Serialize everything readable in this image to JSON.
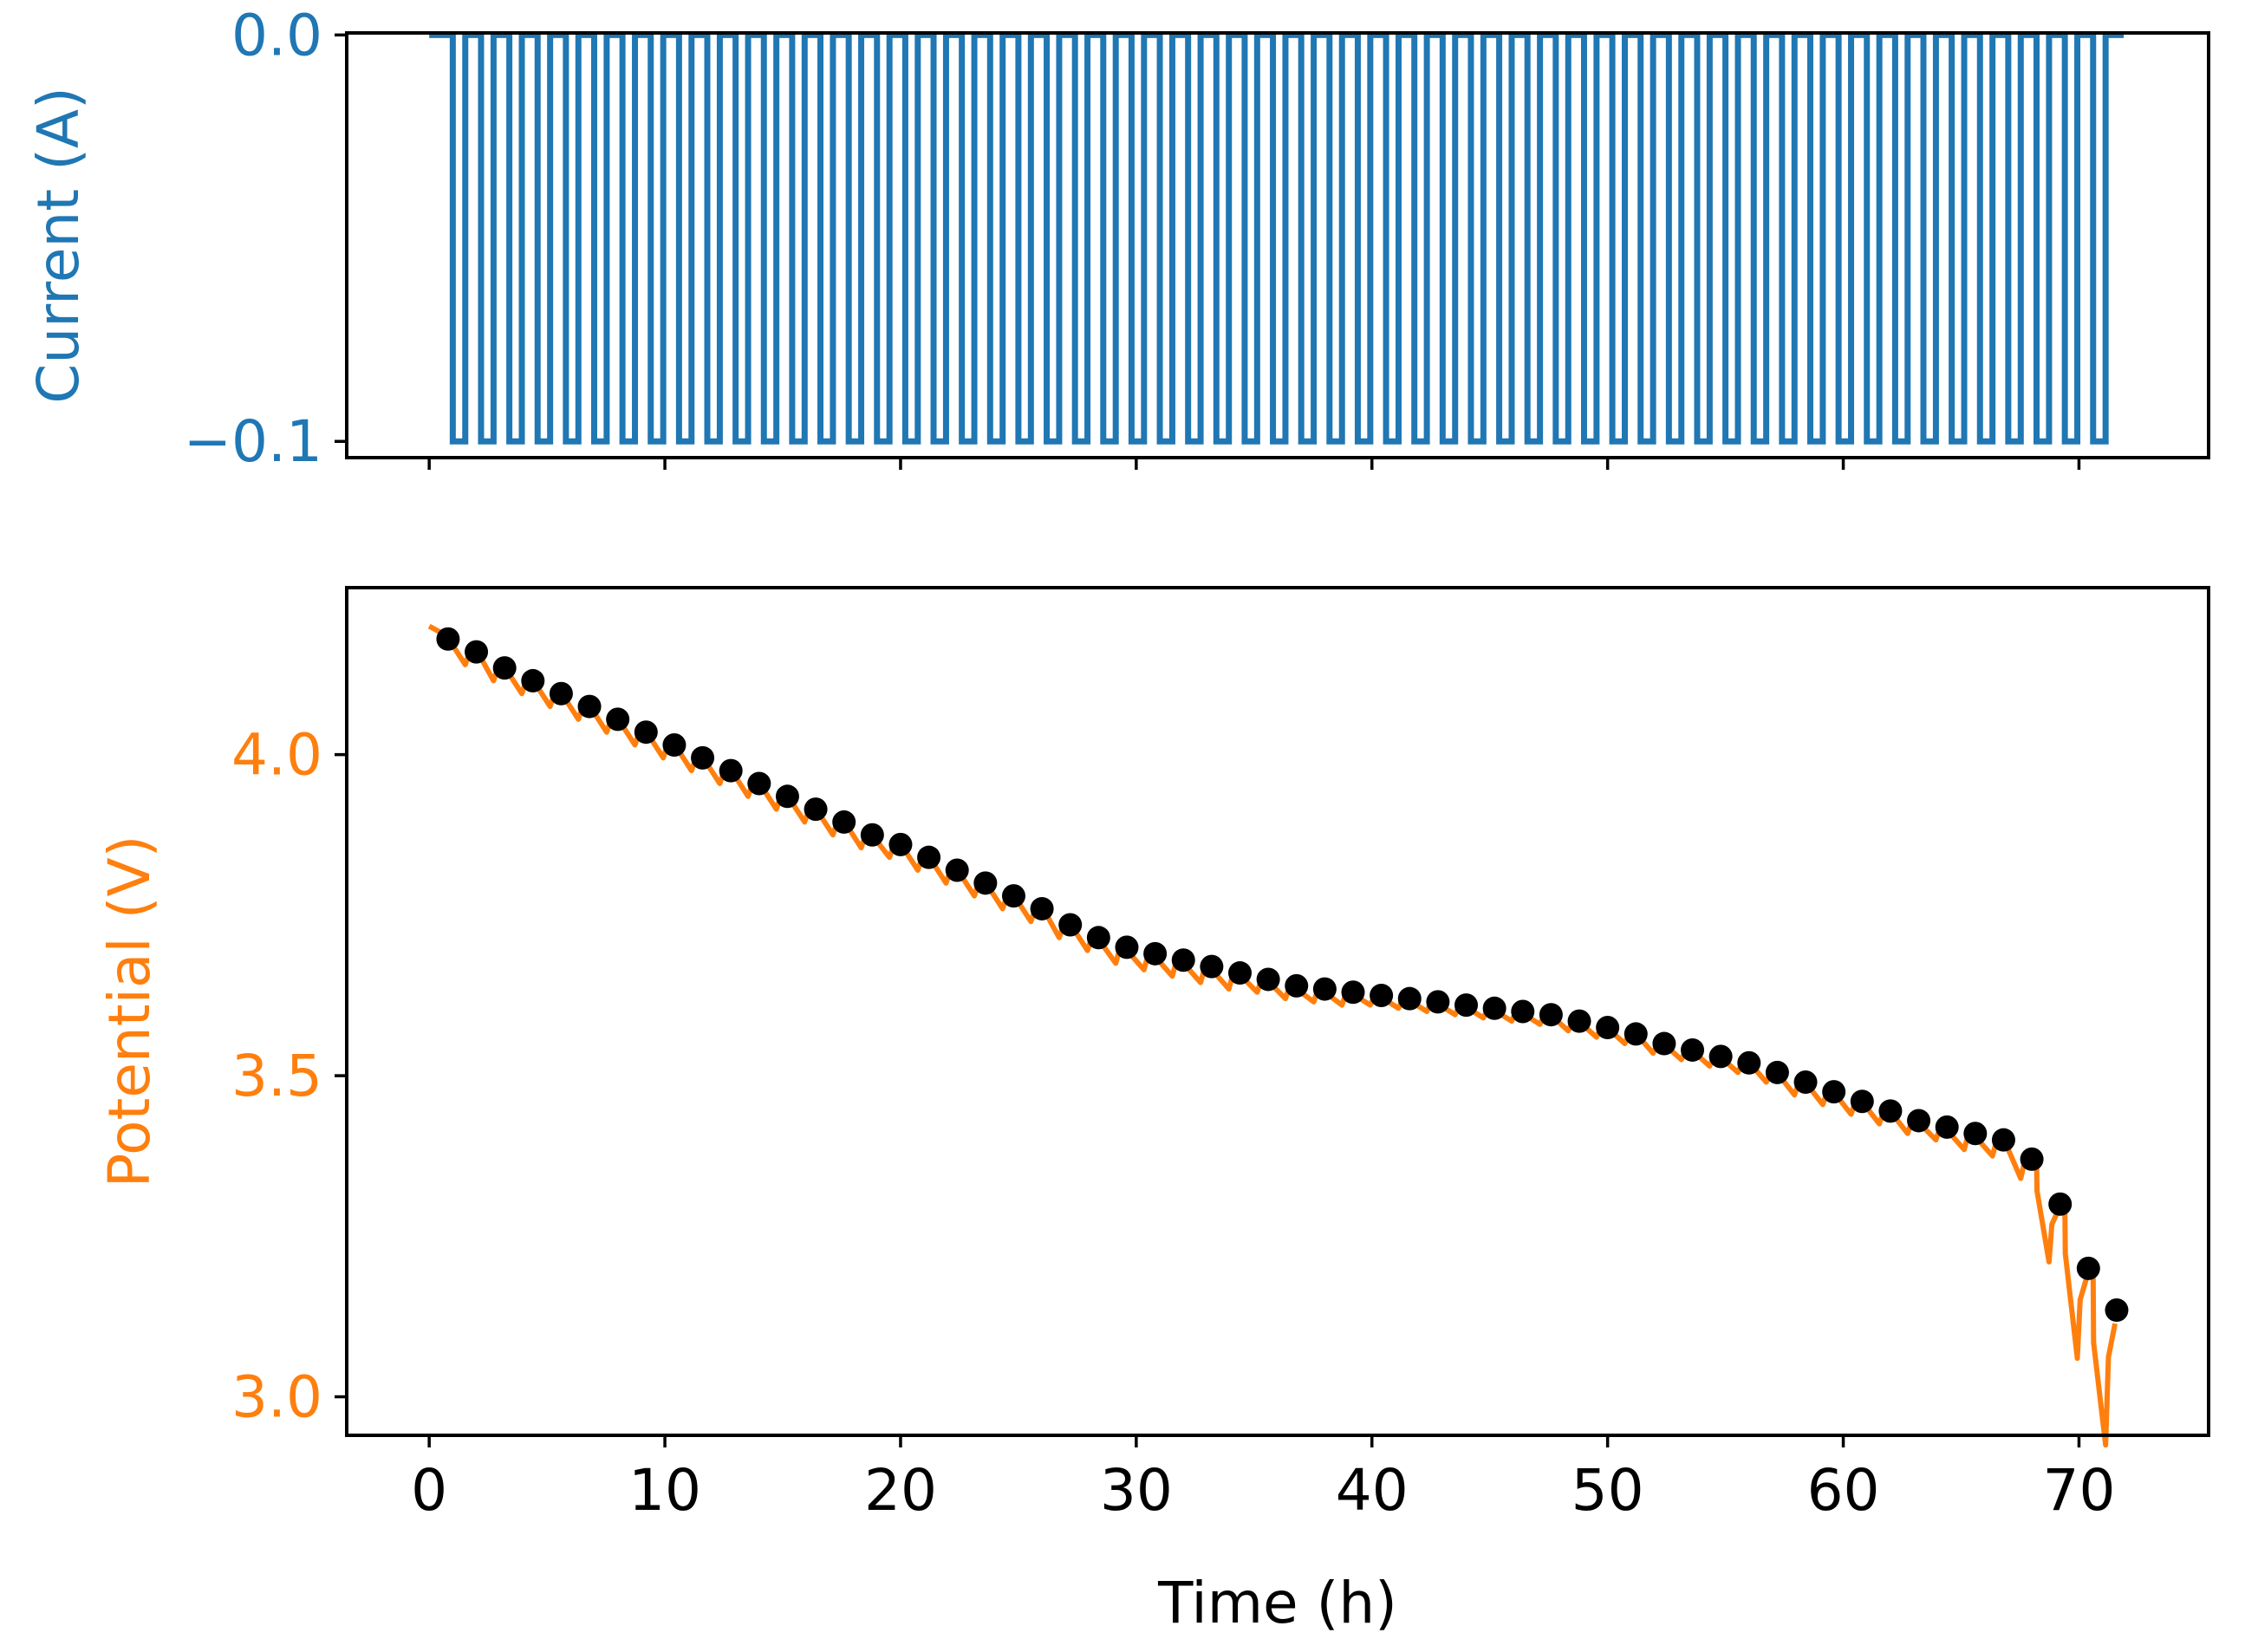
{
  "colors": {
    "current": "#1f77b4",
    "potential": "#ff7f0e",
    "marker": "#000000",
    "axis": "#000000"
  },
  "chart_data": [
    {
      "type": "line",
      "panel": "top",
      "ylabel": "Current (A)",
      "ylabel_color": "#1f77b4",
      "xlim": [
        -3.5,
        75.5
      ],
      "ylim": [
        -0.104,
        0.0005
      ],
      "xticks": [
        0,
        10,
        20,
        30,
        40,
        50,
        60,
        70
      ],
      "xtick_labels_visible": false,
      "yticks": [
        0.0,
        -0.1
      ],
      "ytick_labels": [
        "0.0",
        "−0.1"
      ],
      "ytick_color": "#1f77b4",
      "series": [
        {
          "name": "Current",
          "color": "#1f77b4",
          "description": "Rest at 0.0 A with 59 pulses of -0.1 A between 0 and 72 h",
          "baseline": 0.0,
          "pulse_value": -0.1,
          "pulse_count": 59,
          "first_pulse_start": 1.0,
          "last_pulse_start": 70.6,
          "pulse_duration": 0.53,
          "t_start": 0.0,
          "t_end": 71.9
        }
      ]
    },
    {
      "type": "line",
      "panel": "bottom",
      "xlabel": "Time (h)",
      "ylabel": "Potential (V)",
      "ylabel_color": "#ff7f0e",
      "xlim": [
        -3.5,
        75.5
      ],
      "ylim": [
        2.94,
        4.26
      ],
      "xticks": [
        0,
        10,
        20,
        30,
        40,
        50,
        60,
        70
      ],
      "xtick_labels": [
        "0",
        "10",
        "20",
        "30",
        "40",
        "50",
        "60",
        "70"
      ],
      "yticks": [
        3.0,
        3.5,
        4.0
      ],
      "ytick_labels": [
        "3.0",
        "3.5",
        "4.0"
      ],
      "ytick_color": "#ff7f0e",
      "series": [
        {
          "name": "Potential",
          "color": "#ff7f0e",
          "kind": "line",
          "description": "Potential trace with a dip during each current pulse and relaxation after",
          "t_start": 0.0,
          "v_start": 4.2,
          "dips": [
            0.02,
            0.02,
            0.02,
            0.02,
            0.02,
            0.02,
            0.02,
            0.02,
            0.02,
            0.02,
            0.02,
            0.02,
            0.02,
            0.02,
            0.02,
            0.02,
            0.02,
            0.02,
            0.02,
            0.02,
            0.02,
            0.02,
            0.02,
            0.025,
            0.025,
            0.025,
            0.025,
            0.025,
            0.02,
            0.02,
            0.02,
            0.02,
            0.015,
            0.015,
            0.015,
            0.015,
            0.015,
            0.015,
            0.015,
            0.015,
            0.015,
            0.015,
            0.015,
            0.015,
            0.015,
            0.015,
            0.015,
            0.02,
            0.02,
            0.02,
            0.02,
            0.02,
            0.02,
            0.025,
            0.025,
            0.03,
            0.09,
            0.14,
            0.21
          ]
        },
        {
          "name": "Relaxed potential",
          "color": "#000000",
          "kind": "scatter",
          "x": [
            0.8,
            2.0,
            3.2,
            4.4,
            5.6,
            6.8,
            8.0,
            9.2,
            10.4,
            11.6,
            12.8,
            14.0,
            15.2,
            16.4,
            17.6,
            18.8,
            20.0,
            21.2,
            22.4,
            23.6,
            24.8,
            26.0,
            27.2,
            28.4,
            29.6,
            30.8,
            32.0,
            33.2,
            34.4,
            35.6,
            36.8,
            38.0,
            39.2,
            40.4,
            41.6,
            42.8,
            44.0,
            45.2,
            46.4,
            47.6,
            48.8,
            50.0,
            51.2,
            52.4,
            53.6,
            54.8,
            56.0,
            57.2,
            58.4,
            59.6,
            60.8,
            62.0,
            63.2,
            64.4,
            65.6,
            66.8,
            68.0,
            69.2,
            70.4,
            71.6
          ],
          "y": [
            4.18,
            4.16,
            4.135,
            4.115,
            4.095,
            4.075,
            4.055,
            4.035,
            4.015,
            3.995,
            3.975,
            3.955,
            3.935,
            3.915,
            3.895,
            3.875,
            3.86,
            3.84,
            3.82,
            3.8,
            3.78,
            3.76,
            3.735,
            3.715,
            3.7,
            3.69,
            3.68,
            3.67,
            3.66,
            3.65,
            3.64,
            3.635,
            3.63,
            3.625,
            3.62,
            3.615,
            3.61,
            3.605,
            3.6,
            3.595,
            3.585,
            3.575,
            3.565,
            3.55,
            3.54,
            3.53,
            3.52,
            3.505,
            3.49,
            3.475,
            3.46,
            3.445,
            3.43,
            3.42,
            3.41,
            3.4,
            3.37,
            3.3,
            3.2,
            3.135
          ]
        }
      ]
    }
  ]
}
